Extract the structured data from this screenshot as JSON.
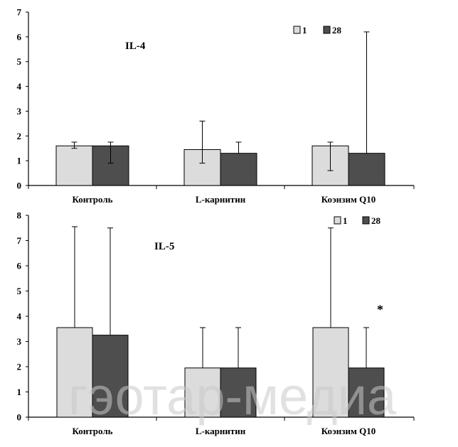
{
  "chart_data": [
    {
      "type": "bar",
      "title": "IL-4",
      "categories": [
        "Контроль",
        "L-карнитин",
        "Коэнзим Q10"
      ],
      "ylim": [
        0,
        7
      ],
      "yticks": [
        0,
        1,
        2,
        3,
        4,
        5,
        6,
        7
      ],
      "series": [
        {
          "name": "1",
          "values": [
            1.6,
            1.45,
            1.6
          ],
          "err_low": [
            1.5,
            0.9,
            0.6
          ],
          "err_high": [
            1.75,
            2.6,
            1.75
          ]
        },
        {
          "name": "28",
          "values": [
            1.6,
            1.3,
            1.3
          ],
          "err_low": [
            0.9,
            1.3,
            1.3
          ],
          "err_high": [
            1.75,
            1.75,
            6.2
          ]
        }
      ],
      "annotations": [],
      "legend": "top-right",
      "grid": false
    },
    {
      "type": "bar",
      "title": "IL-5",
      "categories": [
        "Контроль",
        "L-карнитин",
        "Коэнзим Q10"
      ],
      "ylim": [
        0,
        8
      ],
      "yticks": [
        0,
        1,
        2,
        3,
        4,
        5,
        6,
        7,
        8
      ],
      "series": [
        {
          "name": "1",
          "values": [
            3.55,
            1.95,
            3.55
          ],
          "err_low": [
            3.55,
            1.95,
            3.55
          ],
          "err_high": [
            7.55,
            3.55,
            7.5
          ]
        },
        {
          "name": "28",
          "values": [
            3.25,
            1.95,
            1.95
          ],
          "err_low": [
            3.25,
            1.95,
            1.95
          ],
          "err_high": [
            7.5,
            3.55,
            3.55
          ]
        }
      ],
      "annotations": [
        {
          "text": "*",
          "category": "Коэнзим Q10",
          "y": 4.1
        }
      ],
      "legend": "top-right",
      "grid": false
    }
  ],
  "colors": {
    "series_1": "#dcdcdc",
    "series_28": "#4e4e4e",
    "outline": "#000000"
  },
  "watermark": "гэотар-медиа"
}
